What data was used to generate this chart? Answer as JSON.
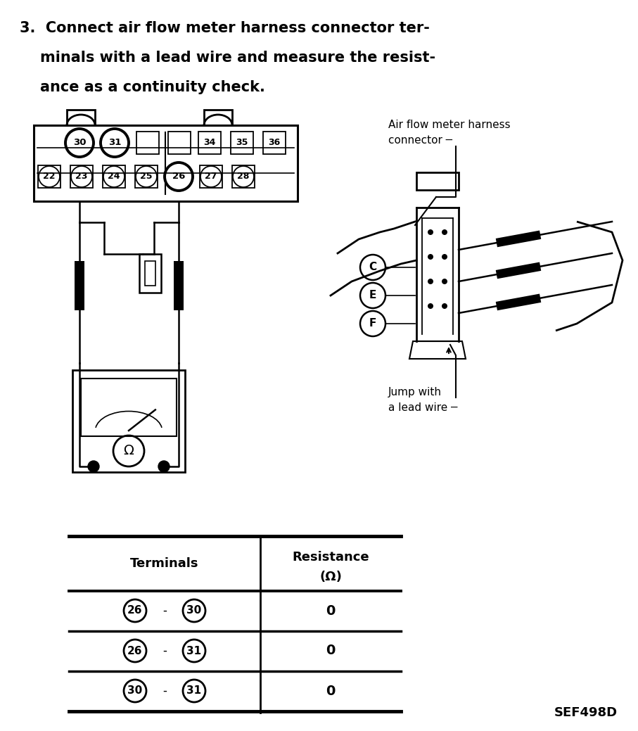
{
  "title_line1": "3.  Connect air flow meter harness connector ter-",
  "title_line2": "    minals with a lead wire and measure the resist-",
  "title_line3": "    ance as a continuity check.",
  "connector_label_line1": "Air flow meter harness",
  "connector_label_line2": "connector",
  "jump_label_line1": "Jump with",
  "jump_label_line2": "a lead wire",
  "sef_label": "SEF498D",
  "table_header_col1": "Terminals",
  "table_header_col2_line1": "Resistance",
  "table_header_col2_line2": "(Ω)",
  "table_rows": [
    [
      "26",
      "30",
      "0"
    ],
    [
      "26",
      "31",
      "0"
    ],
    [
      "30",
      "31",
      "0"
    ]
  ],
  "bg_color": "#ffffff",
  "line_color": "#000000"
}
